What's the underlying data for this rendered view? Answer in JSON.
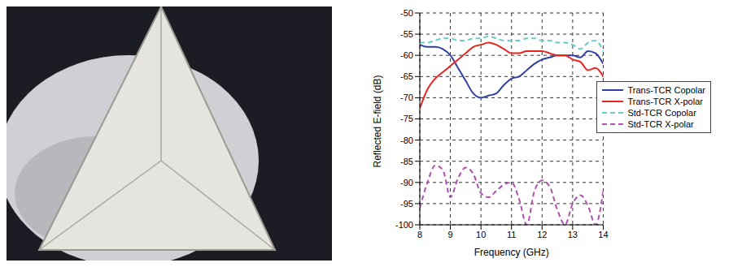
{
  "chart_data": {
    "type": "line",
    "x_label": "Frequency (GHz)",
    "y_label": "Reflected E-field (dB)",
    "x": [
      8,
      8.25,
      8.5,
      8.75,
      9,
      9.25,
      9.5,
      9.75,
      10,
      10.25,
      10.5,
      10.75,
      11,
      11.25,
      11.5,
      11.75,
      12,
      12.25,
      12.5,
      12.75,
      13,
      13.25,
      13.5,
      13.75,
      14
    ],
    "series": [
      {
        "name": "Trans-TCR Copolar",
        "color": "#2f3fa8",
        "line_style": "solid",
        "values": [
          -57.5,
          -58,
          -58,
          -58.5,
          -60,
          -63,
          -66,
          -69,
          -70,
          -69.5,
          -69,
          -67,
          -65.5,
          -65,
          -63.5,
          -62,
          -61,
          -60.5,
          -60,
          -60,
          -60,
          -60.5,
          -59,
          -59.5,
          -62
        ]
      },
      {
        "name": "Trans-TCR X-polar",
        "color": "#e8251f",
        "line_style": "solid",
        "values": [
          -72.5,
          -68,
          -65.5,
          -64,
          -62.5,
          -61,
          -59.5,
          -58,
          -57.5,
          -57,
          -57.5,
          -58.5,
          -59.5,
          -59.5,
          -59,
          -59,
          -59,
          -59.5,
          -60,
          -60,
          -61,
          -61.5,
          -63.5,
          -63,
          -65
        ]
      },
      {
        "name": "Std-TCR Copolar",
        "color": "#66cccc",
        "line_style": "dashed",
        "values": [
          -57,
          -57,
          -56.5,
          -56,
          -56,
          -56.5,
          -56.5,
          -56,
          -56,
          -55.5,
          -56,
          -56.5,
          -56.5,
          -56.5,
          -56,
          -56,
          -56.5,
          -56.5,
          -57,
          -57,
          -57.5,
          -58.5,
          -57,
          -56.5,
          -59
        ]
      },
      {
        "name": "Std-TCR X-polar",
        "color": "#b050b0",
        "line_style": "dashed",
        "values": [
          -96,
          -90,
          -86,
          -87,
          -93.5,
          -89,
          -86.5,
          -88,
          -92.5,
          -93.5,
          -92,
          -90.5,
          -90,
          -94,
          -100,
          -92,
          -89.5,
          -91,
          -96.5,
          -100,
          -95,
          -93,
          -95.5,
          -100,
          -92
        ]
      }
    ],
    "xlim": [
      8,
      14
    ],
    "xticks": [
      8,
      9,
      10,
      11,
      12,
      13,
      14
    ],
    "ylim": [
      -100,
      -50
    ],
    "yticks": [
      -100,
      -95,
      -90,
      -85,
      -80,
      -75,
      -70,
      -65,
      -60,
      -55,
      -50
    ],
    "grid": true,
    "legend": "right"
  }
}
